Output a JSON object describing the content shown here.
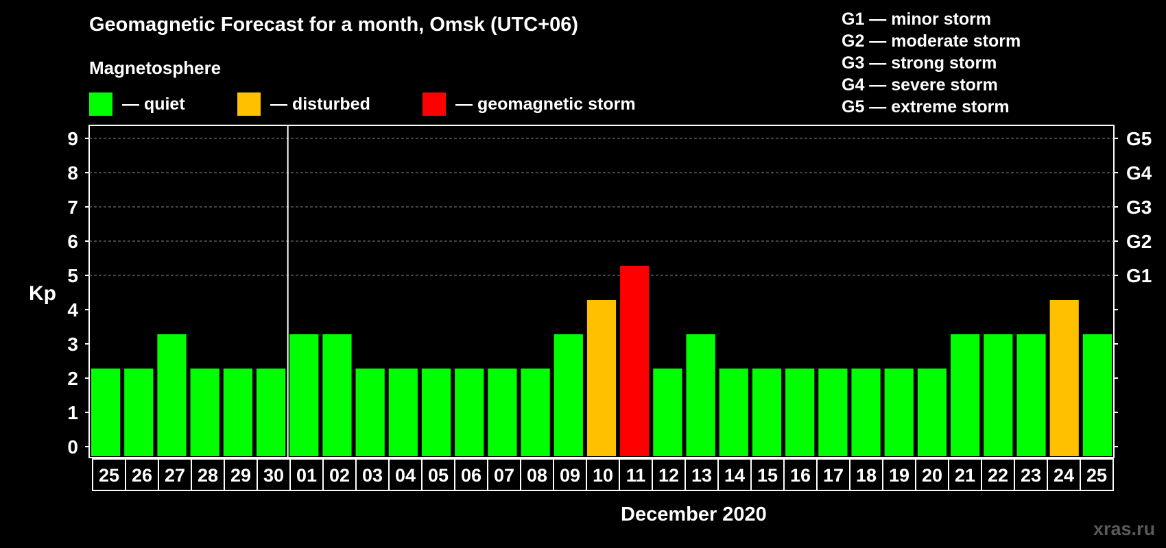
{
  "header": {
    "title": "Geomagnetic Forecast for a month, Omsk (UTC+06)",
    "subtitle": "Magnetosphere"
  },
  "legend": [
    {
      "label": "— quiet",
      "color": "#00ff00"
    },
    {
      "label": "— disturbed",
      "color": "#ffc000"
    },
    {
      "label": "— geomagnetic storm",
      "color": "#ff0000"
    }
  ],
  "storm_scale": [
    "G1 — minor storm",
    "G2 — moderate storm",
    "G3 — strong storm",
    "G4 — severe storm",
    "G5 — extreme storm"
  ],
  "watermark": "xras.ru",
  "chart_data": {
    "type": "bar",
    "title": "Geomagnetic Forecast for a month, Omsk (UTC+06)",
    "xlabel": "December 2020",
    "ylabel": "Kp",
    "ylim": [
      0,
      9
    ],
    "yticks": [
      "0",
      "1",
      "2",
      "3",
      "4",
      "5",
      "6",
      "7",
      "8",
      "9"
    ],
    "right_axis_labels": [
      {
        "y": 5,
        "label": "G1"
      },
      {
        "y": 6,
        "label": "G2"
      },
      {
        "y": 7,
        "label": "G3"
      },
      {
        "y": 8,
        "label": "G4"
      },
      {
        "y": 9,
        "label": "G5"
      }
    ],
    "month_divider_after": "30",
    "grid": true,
    "categories": [
      "25",
      "26",
      "27",
      "28",
      "29",
      "30",
      "01",
      "02",
      "03",
      "04",
      "05",
      "06",
      "07",
      "08",
      "09",
      "10",
      "11",
      "12",
      "13",
      "14",
      "15",
      "16",
      "17",
      "18",
      "19",
      "20",
      "21",
      "22",
      "23",
      "24",
      "25"
    ],
    "values": [
      2,
      2,
      3,
      2,
      2,
      2,
      3,
      3,
      2,
      2,
      2,
      2,
      2,
      2,
      3,
      4,
      5,
      2,
      3,
      2,
      2,
      2,
      2,
      2,
      2,
      2,
      3,
      3,
      3,
      4,
      3
    ],
    "colors": {
      "quiet": "#00ff00",
      "disturbed": "#ffc000",
      "storm": "#ff0000"
    }
  }
}
